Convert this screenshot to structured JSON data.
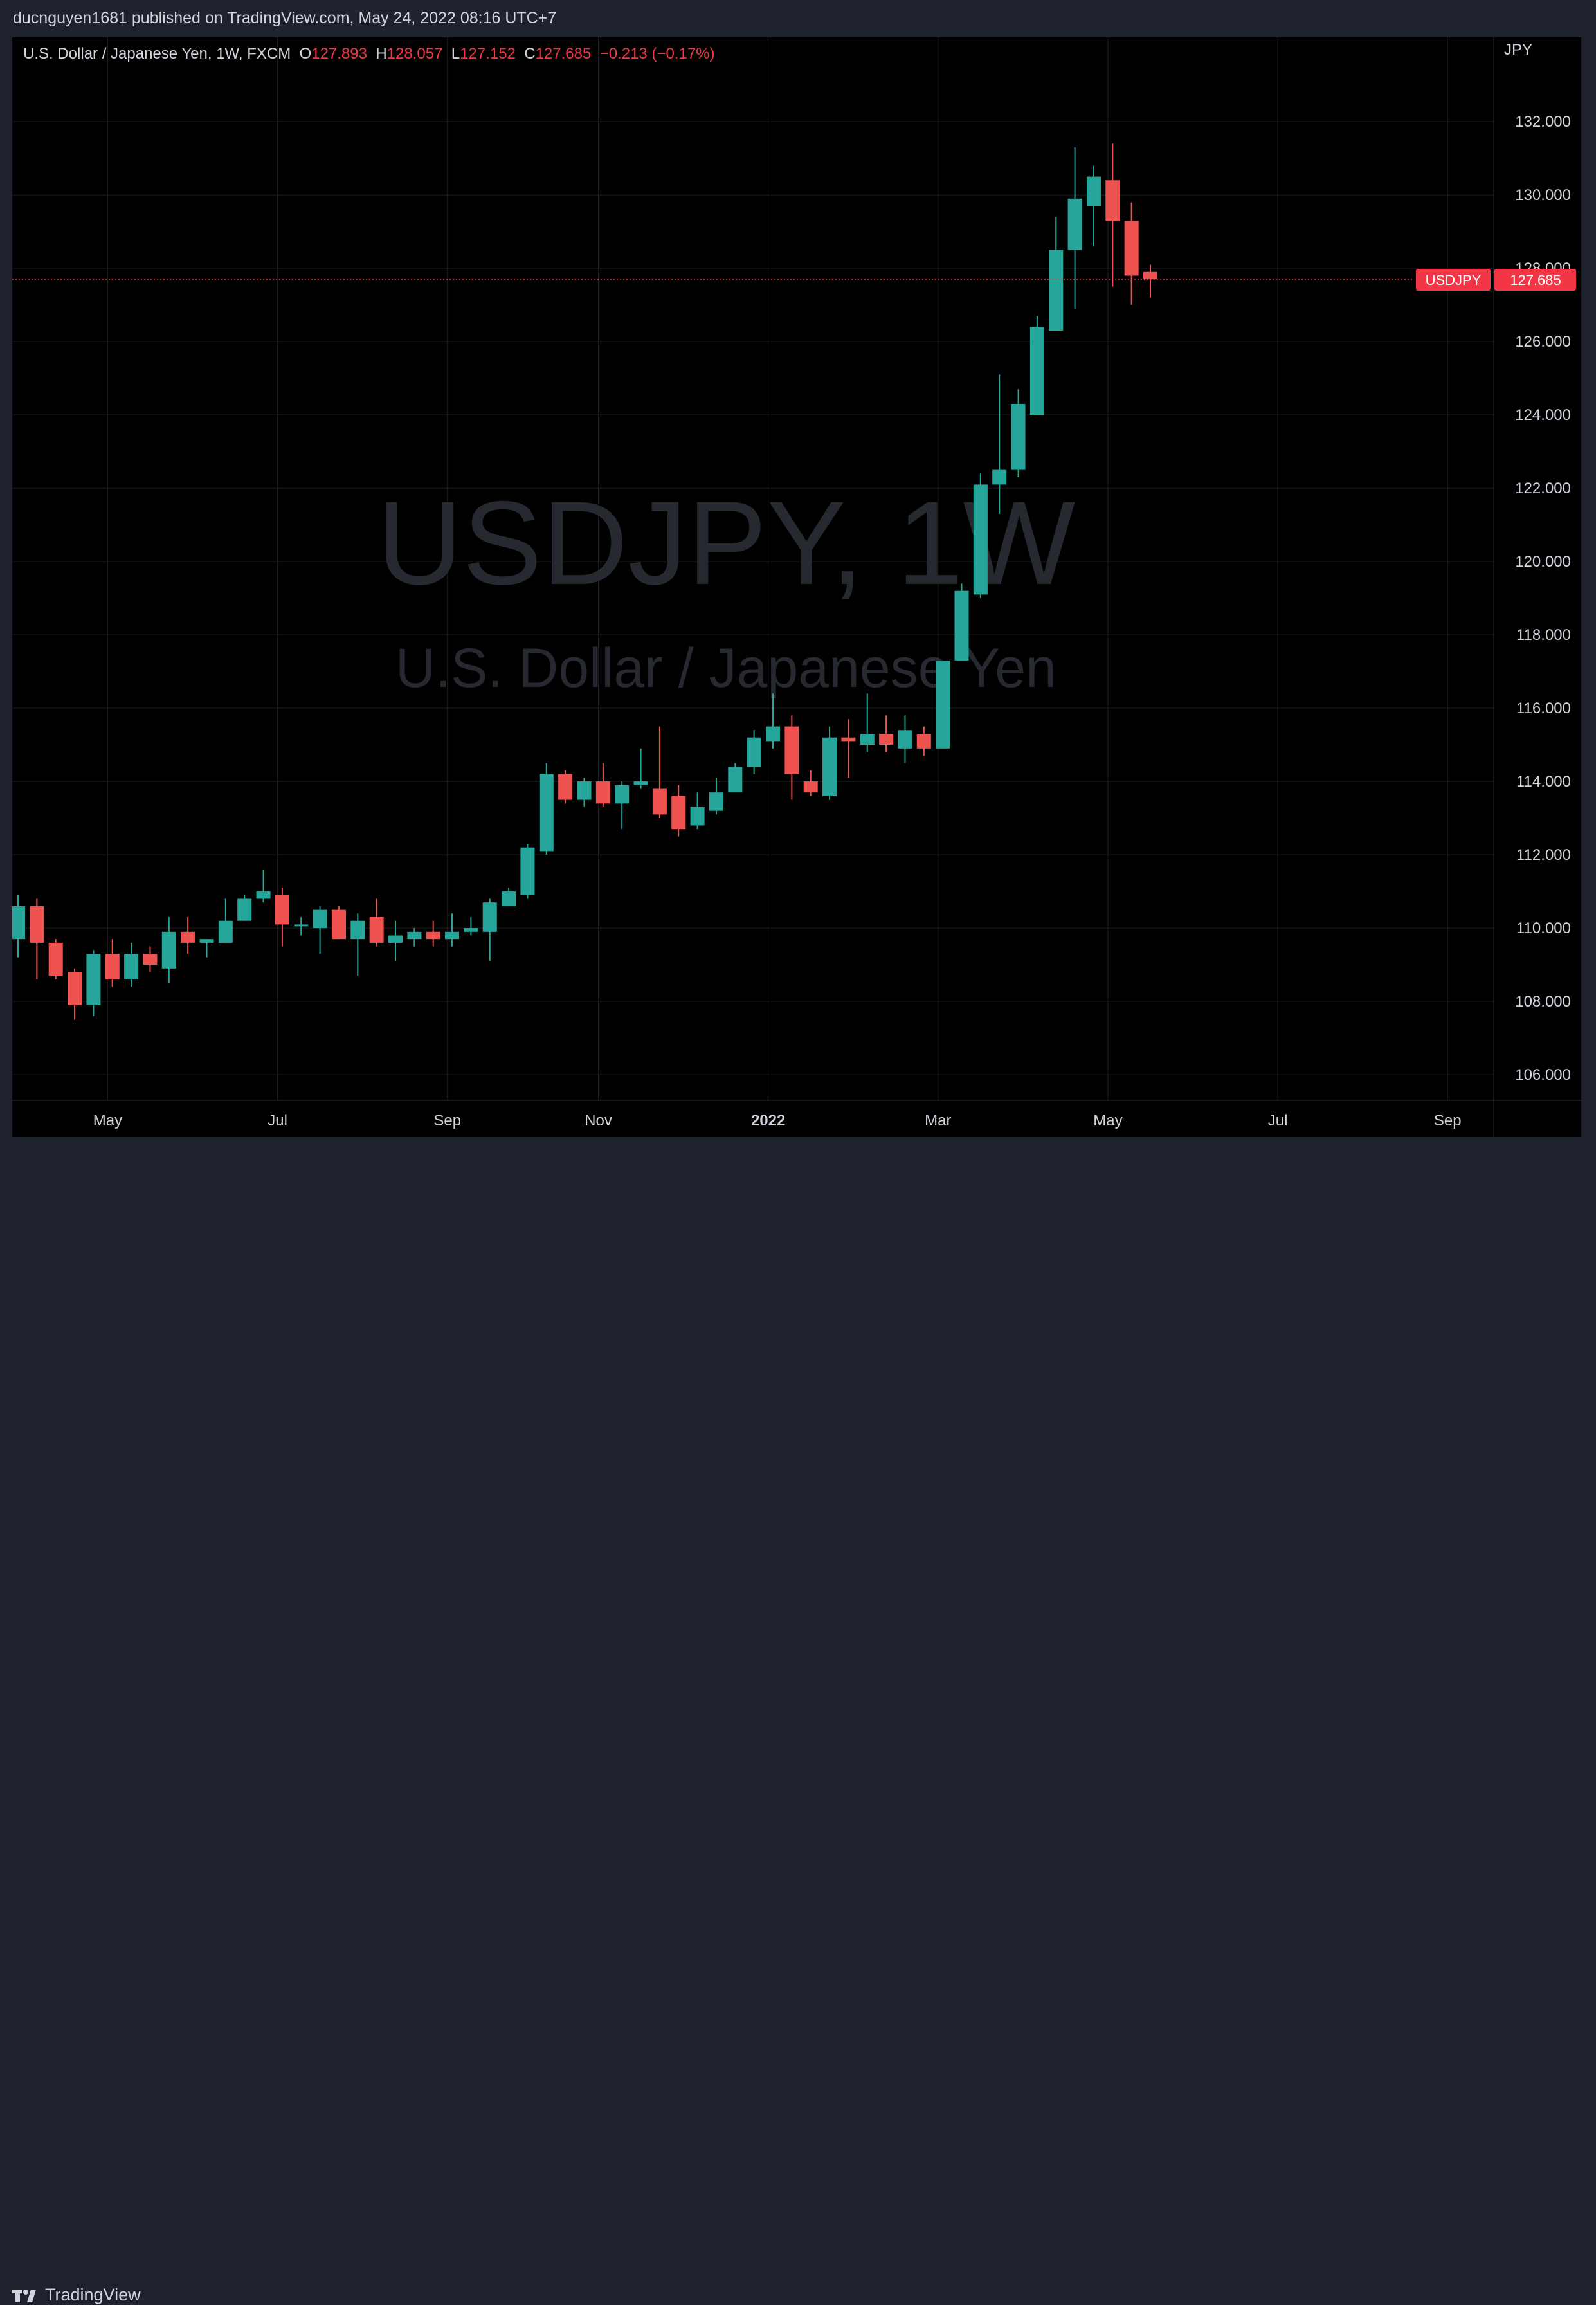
{
  "header": {
    "published": "ducnguyen1681 published on TradingView.com, May 24, 2022 08:16 UTC+7"
  },
  "legend": {
    "symbol": "U.S. Dollar / Japanese Yen, 1W, FXCM",
    "o_label": "O",
    "o_value": "127.893",
    "h_label": "H",
    "h_value": "128.057",
    "l_label": "L",
    "l_value": "127.152",
    "c_label": "C",
    "c_value": "127.685",
    "change": "−0.213 (−0.17%)"
  },
  "watermark": {
    "ticker": "USDJPY, 1W",
    "name": "U.S. Dollar / Japanese Yen"
  },
  "footer": {
    "brand": "TradingView"
  },
  "colors": {
    "up": "#26a69a",
    "down": "#ef5350",
    "background": "#000000",
    "grid": "#1c1e24",
    "text": "#d1d4dc",
    "price_line": "#f23645"
  },
  "chart_data": {
    "type": "candlestick",
    "symbol": "USDJPY",
    "currency": "JPY",
    "y_ticks": [
      "132.000",
      "130.000",
      "128.000",
      "126.000",
      "124.000",
      "122.000",
      "120.000",
      "118.000",
      "116.000",
      "114.000",
      "112.000",
      "110.000",
      "108.000",
      "106.000"
    ],
    "ylim": [
      105.3,
      134.3
    ],
    "x_ticks": [
      {
        "label": "May",
        "week": 4.75,
        "bold": false
      },
      {
        "label": "Jul",
        "week": 13.75,
        "bold": false
      },
      {
        "label": "Sep",
        "week": 22.75,
        "bold": false
      },
      {
        "label": "Nov",
        "week": 30.75,
        "bold": false
      },
      {
        "label": "2022",
        "week": 39.75,
        "bold": true
      },
      {
        "label": "Mar",
        "week": 48.75,
        "bold": false
      },
      {
        "label": "May",
        "week": 57.75,
        "bold": false
      },
      {
        "label": "Jul",
        "week": 66.75,
        "bold": false
      },
      {
        "label": "Sep",
        "week": 75.75,
        "bold": false
      }
    ],
    "last_price": {
      "label": "USDJPY",
      "value": "127.685",
      "price": 127.685
    },
    "candles": [
      {
        "o": 109.7,
        "h": 110.9,
        "l": 109.2,
        "c": 110.6
      },
      {
        "o": 110.6,
        "h": 110.8,
        "l": 108.6,
        "c": 109.6
      },
      {
        "o": 109.6,
        "h": 109.7,
        "l": 108.6,
        "c": 108.7
      },
      {
        "o": 108.8,
        "h": 108.9,
        "l": 107.5,
        "c": 107.9
      },
      {
        "o": 107.9,
        "h": 109.4,
        "l": 107.6,
        "c": 109.3
      },
      {
        "o": 109.3,
        "h": 109.7,
        "l": 108.4,
        "c": 108.6
      },
      {
        "o": 108.6,
        "h": 109.6,
        "l": 108.4,
        "c": 109.3
      },
      {
        "o": 109.3,
        "h": 109.5,
        "l": 108.8,
        "c": 109.0
      },
      {
        "o": 108.9,
        "h": 110.3,
        "l": 108.5,
        "c": 109.9
      },
      {
        "o": 109.9,
        "h": 110.3,
        "l": 109.3,
        "c": 109.6
      },
      {
        "o": 109.6,
        "h": 109.7,
        "l": 109.2,
        "c": 109.7
      },
      {
        "o": 109.6,
        "h": 110.8,
        "l": 109.6,
        "c": 110.2
      },
      {
        "o": 110.2,
        "h": 110.9,
        "l": 110.2,
        "c": 110.8
      },
      {
        "o": 110.8,
        "h": 111.6,
        "l": 110.7,
        "c": 111.0
      },
      {
        "o": 110.9,
        "h": 111.1,
        "l": 109.5,
        "c": 110.1
      },
      {
        "o": 110.1,
        "h": 110.3,
        "l": 109.8,
        "c": 110.1
      },
      {
        "o": 110.0,
        "h": 110.6,
        "l": 109.3,
        "c": 110.5
      },
      {
        "o": 110.5,
        "h": 110.6,
        "l": 109.7,
        "c": 109.7
      },
      {
        "o": 109.7,
        "h": 110.4,
        "l": 108.7,
        "c": 110.2
      },
      {
        "o": 110.3,
        "h": 110.8,
        "l": 109.5,
        "c": 109.6
      },
      {
        "o": 109.6,
        "h": 110.2,
        "l": 109.1,
        "c": 109.8
      },
      {
        "o": 109.7,
        "h": 110.0,
        "l": 109.5,
        "c": 109.9
      },
      {
        "o": 109.9,
        "h": 110.2,
        "l": 109.5,
        "c": 109.7
      },
      {
        "o": 109.7,
        "h": 110.4,
        "l": 109.5,
        "c": 109.9
      },
      {
        "o": 109.9,
        "h": 110.3,
        "l": 109.8,
        "c": 110.0
      },
      {
        "o": 109.9,
        "h": 110.8,
        "l": 109.1,
        "c": 110.7
      },
      {
        "o": 110.6,
        "h": 111.1,
        "l": 110.6,
        "c": 111.0
      },
      {
        "o": 110.9,
        "h": 112.3,
        "l": 110.8,
        "c": 112.2
      },
      {
        "o": 112.1,
        "h": 114.5,
        "l": 112.0,
        "c": 114.2
      },
      {
        "o": 114.2,
        "h": 114.3,
        "l": 113.4,
        "c": 113.5
      },
      {
        "o": 113.5,
        "h": 114.1,
        "l": 113.3,
        "c": 114.0
      },
      {
        "o": 114.0,
        "h": 114.5,
        "l": 113.3,
        "c": 113.4
      },
      {
        "o": 113.4,
        "h": 114.0,
        "l": 112.7,
        "c": 113.9
      },
      {
        "o": 113.9,
        "h": 114.9,
        "l": 113.8,
        "c": 114.0
      },
      {
        "o": 113.8,
        "h": 115.5,
        "l": 113.0,
        "c": 113.1
      },
      {
        "o": 113.6,
        "h": 113.9,
        "l": 112.5,
        "c": 112.7
      },
      {
        "o": 112.8,
        "h": 113.7,
        "l": 112.7,
        "c": 113.3
      },
      {
        "o": 113.2,
        "h": 114.1,
        "l": 113.1,
        "c": 113.7
      },
      {
        "o": 113.7,
        "h": 114.5,
        "l": 113.7,
        "c": 114.4
      },
      {
        "o": 114.4,
        "h": 115.4,
        "l": 114.2,
        "c": 115.2
      },
      {
        "o": 115.1,
        "h": 116.4,
        "l": 114.9,
        "c": 115.5
      },
      {
        "o": 115.5,
        "h": 115.8,
        "l": 113.5,
        "c": 114.2
      },
      {
        "o": 114.0,
        "h": 114.3,
        "l": 113.6,
        "c": 113.7
      },
      {
        "o": 113.6,
        "h": 115.5,
        "l": 113.5,
        "c": 115.2
      },
      {
        "o": 115.2,
        "h": 115.7,
        "l": 114.1,
        "c": 115.1
      },
      {
        "o": 115.0,
        "h": 116.4,
        "l": 114.8,
        "c": 115.3
      },
      {
        "o": 115.3,
        "h": 115.8,
        "l": 114.8,
        "c": 115.0
      },
      {
        "o": 114.9,
        "h": 115.8,
        "l": 114.5,
        "c": 115.4
      },
      {
        "o": 115.3,
        "h": 115.5,
        "l": 114.7,
        "c": 114.9
      },
      {
        "o": 114.9,
        "h": 117.3,
        "l": 114.9,
        "c": 117.3
      },
      {
        "o": 117.3,
        "h": 119.4,
        "l": 117.3,
        "c": 119.2
      },
      {
        "o": 119.1,
        "h": 122.4,
        "l": 119.0,
        "c": 122.1
      },
      {
        "o": 122.1,
        "h": 125.1,
        "l": 121.3,
        "c": 122.5
      },
      {
        "o": 122.5,
        "h": 124.7,
        "l": 122.3,
        "c": 124.3
      },
      {
        "o": 124.0,
        "h": 126.7,
        "l": 124.0,
        "c": 126.4
      },
      {
        "o": 126.3,
        "h": 129.4,
        "l": 126.3,
        "c": 128.5
      },
      {
        "o": 128.5,
        "h": 131.3,
        "l": 126.9,
        "c": 129.9
      },
      {
        "o": 129.7,
        "h": 130.8,
        "l": 128.6,
        "c": 130.5
      },
      {
        "o": 130.4,
        "h": 131.4,
        "l": 127.5,
        "c": 129.3
      },
      {
        "o": 129.3,
        "h": 129.8,
        "l": 127.0,
        "c": 127.8
      },
      {
        "o": 127.9,
        "h": 128.1,
        "l": 127.2,
        "c": 127.7
      }
    ]
  }
}
